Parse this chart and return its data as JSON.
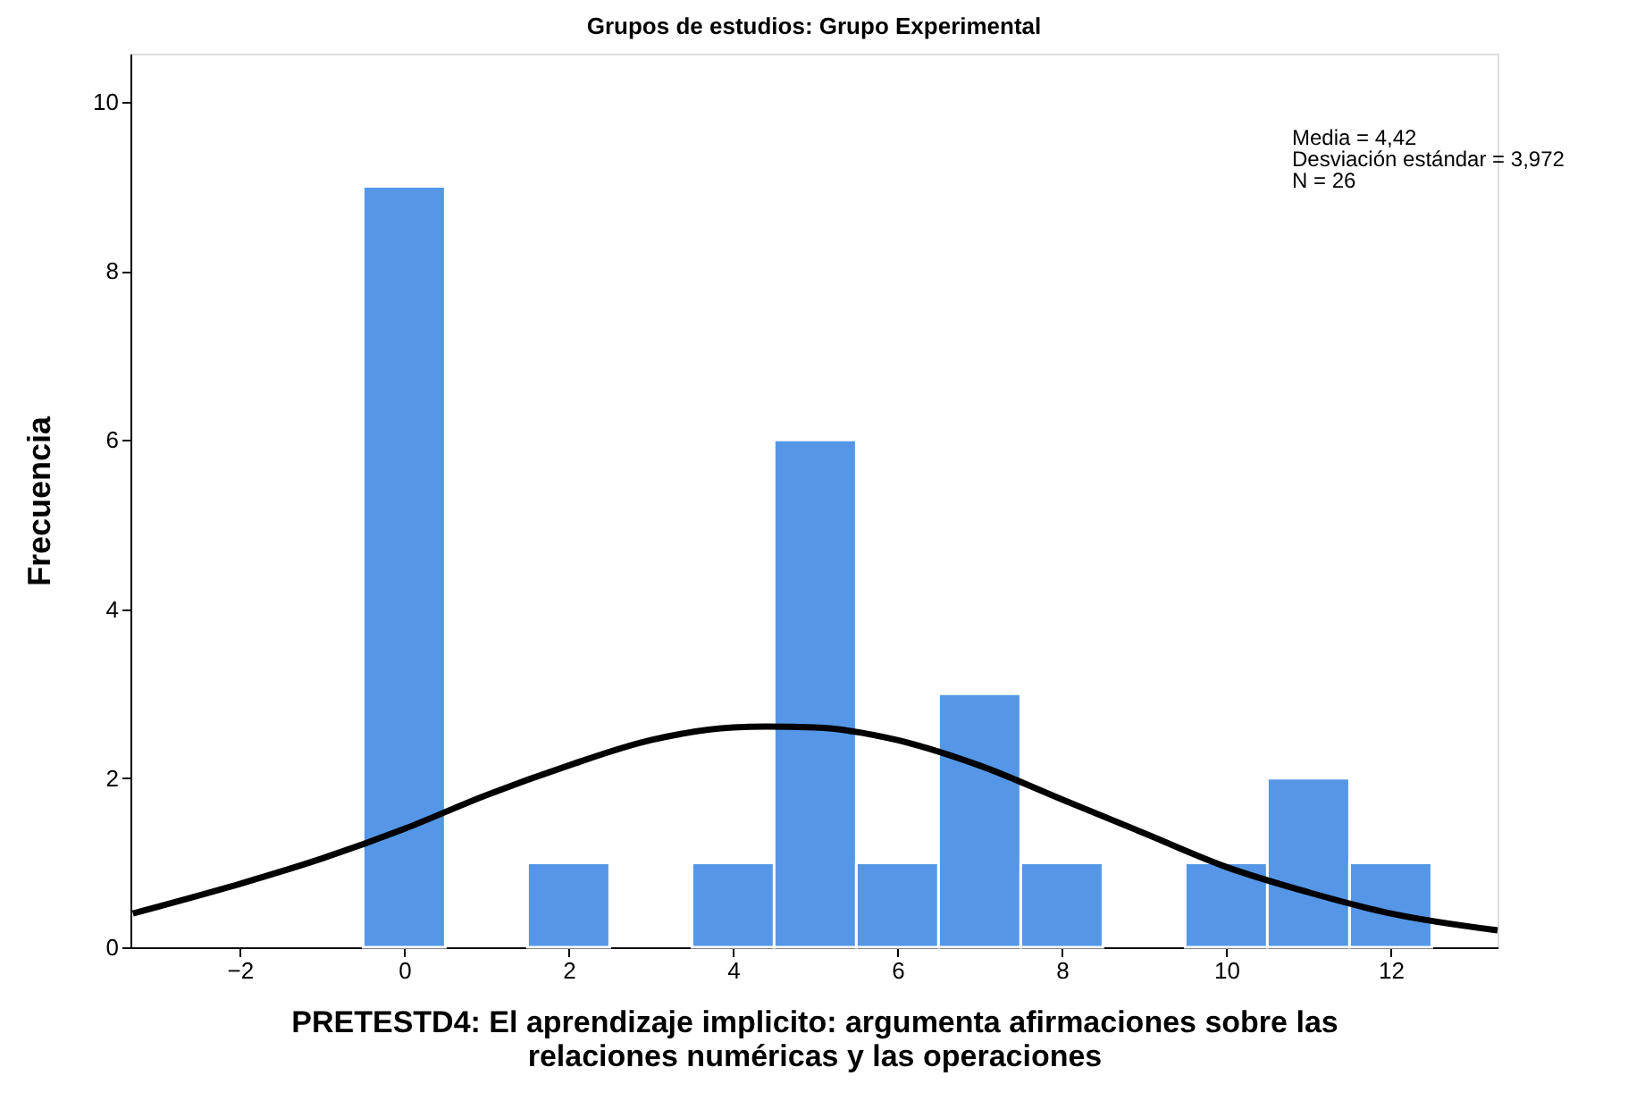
{
  "chart_data": {
    "type": "histogram",
    "title": "Grupos de estudios: Grupo Experimental",
    "xlabel": "PRETESTD4: El aprendizaje implicito: argumenta afirmaciones sobre las\nrelaciones numéricas y las operaciones",
    "ylabel": "Frecuencia",
    "bins": [
      -0.5,
      0.5,
      1.5,
      2.5,
      3.5,
      4.5,
      5.5,
      6.5,
      7.5,
      8.5,
      9.5,
      10.5,
      11.5,
      12.5
    ],
    "values": [
      9,
      0,
      1,
      0,
      1,
      6,
      1,
      3,
      1,
      0,
      1,
      2,
      1
    ],
    "color": "#5597e6",
    "series": [
      {
        "type": "line",
        "color": "#000000",
        "x": [
          -3.3,
          -2,
          -1,
          0,
          1,
          2,
          3,
          4,
          4.4,
          5,
          6,
          7,
          8,
          9,
          10,
          11,
          12,
          13.3
        ],
        "values": [
          0.4,
          0.75,
          1.05,
          1.4,
          1.8,
          2.15,
          2.45,
          2.6,
          2.61,
          2.6,
          2.45,
          2.15,
          1.75,
          1.35,
          0.95,
          0.65,
          0.4,
          0.2
        ]
      }
    ],
    "xlim": [
      -3.33,
      13.3
    ],
    "xticks": [
      -2,
      0,
      2,
      4,
      6,
      8,
      10,
      12
    ],
    "ylim": [
      0,
      10.57
    ],
    "yticks": [
      0,
      2,
      4,
      6,
      8,
      10
    ],
    "grid": false,
    "annotations": [
      "Media = 4,42",
      "Desviación estándar = 3,972",
      "N = 26"
    ]
  }
}
